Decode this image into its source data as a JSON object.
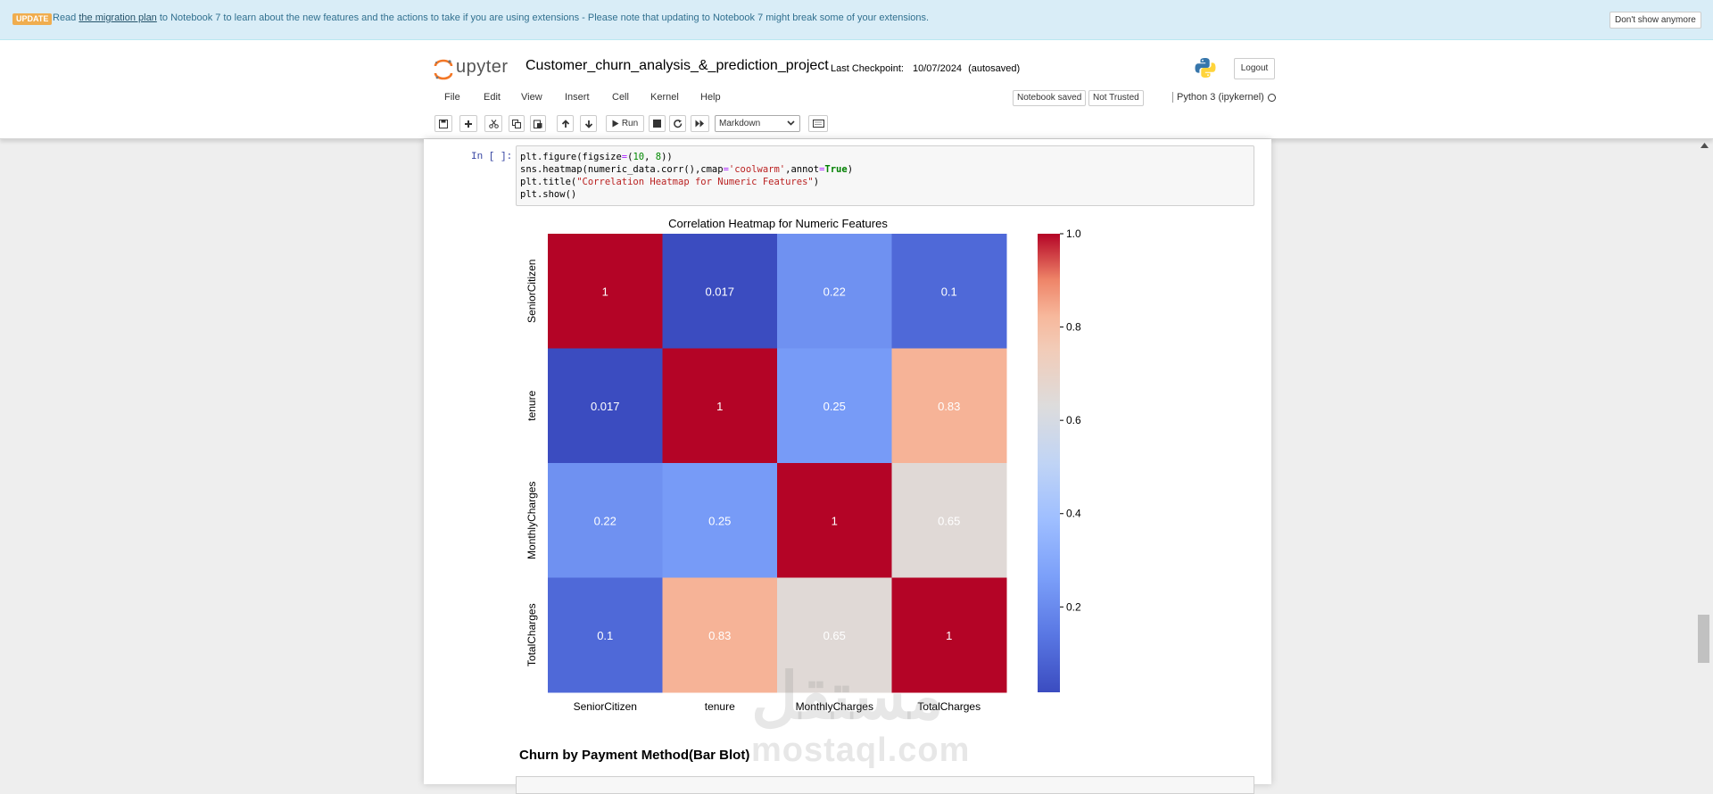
{
  "banner": {
    "badge": "UPDATE",
    "read": "Read",
    "link": "the migration plan",
    "message": "to Notebook 7 to learn about the new features and the actions to take if you are using extensions - Please note that updating to Notebook 7 might break some of your extensions.",
    "dismiss": "Don't show anymore"
  },
  "header": {
    "logo_text": "upyter",
    "notebook_title": "Customer_churn_analysis_&_prediction_project",
    "checkpoint_label": "Last Checkpoint:",
    "checkpoint_date": "10/07/2024",
    "autosave": "(autosaved)",
    "logout": "Logout"
  },
  "menu": {
    "items": [
      "File",
      "Edit",
      "View",
      "Insert",
      "Cell",
      "Kernel",
      "Help"
    ],
    "notebook_saved": "Notebook saved",
    "trust": "Not Trusted",
    "kernel": "Python 3 (ipykernel)"
  },
  "toolbar": {
    "run_label": "Run",
    "cell_type": "Markdown"
  },
  "cell": {
    "prompt": "In [ ]:"
  },
  "chart_data": {
    "type": "heatmap",
    "title": "Correlation Heatmap for Numeric Features",
    "row_labels": [
      "SeniorCitizen",
      "tenure",
      "MonthlyCharges",
      "TotalCharges"
    ],
    "col_labels": [
      "SeniorCitizen",
      "tenure",
      "MonthlyCharges",
      "TotalCharges"
    ],
    "values": [
      [
        1,
        0.017,
        0.22,
        0.1
      ],
      [
        0.017,
        1,
        0.25,
        0.83
      ],
      [
        0.22,
        0.25,
        1,
        0.65
      ],
      [
        0.1,
        0.83,
        0.65,
        1
      ]
    ],
    "annotations": [
      [
        "1",
        "0.017",
        "0.22",
        "0.1"
      ],
      [
        "0.017",
        "1",
        "0.25",
        "0.83"
      ],
      [
        "0.22",
        "0.25",
        "1",
        "0.65"
      ],
      [
        "0.1",
        "0.83",
        "0.65",
        "1"
      ]
    ],
    "colormap": "coolwarm",
    "vmin": 0.017,
    "vmax": 1,
    "colorbar_ticks": [
      1.0,
      0.8,
      0.6,
      0.4,
      0.2
    ],
    "colorbar_tick_labels": [
      "1.0",
      "0.8",
      "0.6",
      "0.4",
      "0.2"
    ]
  },
  "next_section": {
    "heading": "Churn by Payment Method(Bar Blot)"
  },
  "watermark": {
    "arabic": "مستقل",
    "latin": "mostaql.com"
  }
}
